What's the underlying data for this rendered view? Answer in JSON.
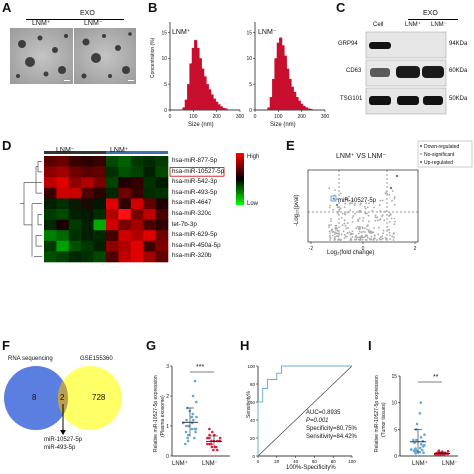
{
  "panels": {
    "A": {
      "letter": "A",
      "header": "EXO",
      "left_label": "LNM⁺",
      "right_label": "LNM⁻"
    },
    "B": {
      "letter": "B",
      "ylabel": "Concentration (%)",
      "xlabel": "Size (nm)",
      "left_title": "LNM⁺",
      "right_title": "LNM⁻",
      "yticks": [
        "0",
        "5",
        "10",
        "15"
      ],
      "xticks": [
        "0",
        "100",
        "200",
        "300"
      ]
    },
    "C": {
      "letter": "C",
      "header": "EXO",
      "col_labels": [
        "Cell",
        "LNM⁺",
        "LNM⁻"
      ],
      "rows": [
        {
          "protein": "GRP94",
          "size": "94KDa"
        },
        {
          "protein": "CD63",
          "size": "60KDa"
        },
        {
          "protein": "TSG101",
          "size": "50KDa"
        }
      ]
    },
    "D": {
      "letter": "D",
      "group_left": "LNM⁻",
      "group_right": "LNM⁺",
      "legend_high": "High",
      "legend_low": "Low",
      "genes": [
        "hsa-miR-877-5p",
        "hsa-miR-10527-5p",
        "hsa-miR-542-3p",
        "hsa-miR-493-5p",
        "hsa-miR-4647",
        "hsa-miR-320c",
        "let-7b-3p",
        "hsa-miR-629-5p",
        "hsa-miR-450a-5p",
        "hsa-miR-320b"
      ],
      "colors": [
        [
          "#5a0000",
          "#6a0000",
          "#3a0000",
          "#2a0000",
          "#380000",
          "#004a00",
          "#006000",
          "#003800",
          "#002a00",
          "#003a00"
        ],
        [
          "#8a0000",
          "#a00000",
          "#700000",
          "#5a0000",
          "#600000",
          "#003000",
          "#005200",
          "#004000",
          "#002000",
          "#004800"
        ],
        [
          "#c00000",
          "#e00000",
          "#900000",
          "#b00000",
          "#7a0000",
          "#004000",
          "#200000",
          "#300000",
          "#003000",
          "#001a00"
        ],
        [
          "#3a0000",
          "#d00000",
          "#c80000",
          "#500000",
          "#2a0000",
          "#002800",
          "#700000",
          "#380000",
          "#002a00",
          "#003200"
        ],
        [
          "#002000",
          "#003000",
          "#0a1a00",
          "#1a0a00",
          "#001800",
          "#e00000",
          "#300000",
          "#d00000",
          "#600000",
          "#200000"
        ],
        [
          "#003a00",
          "#004a00",
          "#002000",
          "#001a00",
          "#002c00",
          "#b00000",
          "#ff1010",
          "#7a0000",
          "#c00000",
          "#4a0000"
        ],
        [
          "#002800",
          "#1a0000",
          "#003a00",
          "#002000",
          "#00aa00",
          "#d00000",
          "#7a0000",
          "#a00000",
          "#4a0000",
          "#300000"
        ],
        [
          "#008000",
          "#006800",
          "#003000",
          "#002000",
          "#002800",
          "#400000",
          "#d00000",
          "#b00000",
          "#e00000",
          "#700000"
        ],
        [
          "#003a00",
          "#00a000",
          "#005000",
          "#003800",
          "#002000",
          "#900000",
          "#b00000",
          "#e00000",
          "#400000",
          "#800000"
        ],
        [
          "#005000",
          "#004000",
          "#002800",
          "#003000",
          "#004800",
          "#500000",
          "#c00000",
          "#e00000",
          "#a00000",
          "#600000"
        ]
      ]
    },
    "E": {
      "letter": "E",
      "title": "LNM⁺ VS LNM⁻",
      "highlight": "miR-10527-5p",
      "ylabel": "-Log₁₀(pval)",
      "xlabel": "Log₂(fold change)",
      "legend": [
        "Down-regulated",
        "No-significant",
        "Up-regulated"
      ],
      "xticks": [
        "-2",
        "0",
        "2"
      ]
    },
    "F": {
      "letter": "F",
      "left_label": "RNA sequencing",
      "right_label": "GSE155360",
      "left_count": "8",
      "overlap_count": "2",
      "right_count": "728",
      "result_lines": [
        "miR-10527-5p",
        "miR-493-5p"
      ]
    },
    "G": {
      "letter": "G",
      "ylabel": "Relative miR-10527-5p expression (Plasma exosome)",
      "ylabel_line1": "Relative miR-10527-5p expression",
      "ylabel_line2": "(Plasma exosome)",
      "groups": [
        "LNM⁺",
        "LNM⁻"
      ],
      "significance": "***",
      "yticks": [
        "0",
        "1",
        "2",
        "3"
      ]
    },
    "H": {
      "letter": "H",
      "ylabel": "Sensitivity%",
      "xlabel": "100%-Specificity%",
      "auc": "AUC=0.8935",
      "p": "P=0.001",
      "specificity": "Specificity=80.75%",
      "sensitivity": "Sensitivity=84.42%",
      "ticks": [
        "0",
        "20",
        "40",
        "60",
        "80",
        "100"
      ]
    },
    "I": {
      "letter": "I",
      "ylabel": "Relative miR-10527-5p expression (Tumor tissues)",
      "ylabel_line1": "Relative miR-10527-5p expression",
      "ylabel_line2": "(Tumor tissues)",
      "groups": [
        "LNM⁺",
        "LNM⁻"
      ],
      "significance": "**",
      "yticks": [
        "0",
        "5",
        "10",
        "15"
      ]
    }
  },
  "colors": {
    "bar_red": "#c8102e",
    "venn_blue": "#5b7fe0",
    "venn_yellow": "#ffff66",
    "venn_overlap": "#b8a050",
    "scatter_blue": "#5fa8d8",
    "scatter_red": "#d8203c",
    "roc": "#6aaed6"
  },
  "chart_data": [
    {
      "type": "bar",
      "panel": "B-left",
      "title": "LNM⁺",
      "xlabel": "Size (nm)",
      "ylabel": "Concentration (%)",
      "x": [
        60,
        70,
        80,
        90,
        100,
        110,
        120,
        130,
        140,
        150,
        160,
        170,
        180,
        190,
        200,
        210,
        220,
        230,
        240,
        250
      ],
      "values": [
        0.5,
        2,
        5,
        9,
        12,
        13.5,
        12,
        10,
        8,
        6.5,
        5,
        4,
        3,
        2.2,
        1.6,
        1.1,
        0.7,
        0.4,
        0.3,
        0.1
      ],
      "ylim": [
        0,
        17
      ],
      "xlim": [
        0,
        300
      ]
    },
    {
      "type": "bar",
      "panel": "B-right",
      "title": "LNM⁻",
      "xlabel": "Size (nm)",
      "x": [
        60,
        70,
        80,
        90,
        100,
        110,
        120,
        130,
        140,
        150,
        160,
        170,
        180,
        190,
        200,
        210,
        220,
        230,
        240,
        250
      ],
      "values": [
        0.5,
        2.5,
        6,
        10,
        13,
        14,
        12.5,
        10.5,
        8,
        6,
        4.5,
        3.5,
        2.5,
        1.8,
        1.2,
        0.8,
        0.5,
        0.3,
        0.2,
        0.1
      ],
      "ylim": [
        0,
        17
      ],
      "xlim": [
        0,
        300
      ]
    },
    {
      "type": "scatter",
      "panel": "G",
      "categories": [
        "LNM⁺",
        "LNM⁻"
      ],
      "series": [
        {
          "values": [
            0.6,
            0.8,
            0.9,
            1.0,
            1.1,
            1.2,
            1.3,
            1.0,
            0.7,
            1.5,
            1.8,
            2.0,
            0.5,
            0.9,
            1.4,
            1.1,
            0.8,
            1.2,
            2.5,
            0.4,
            1.0,
            1.6,
            0.9,
            1.3,
            0.6
          ]
        },
        {
          "values": [
            0.3,
            0.4,
            0.5,
            0.6,
            0.2,
            0.5,
            0.7,
            0.4,
            0.3,
            0.6,
            0.8,
            0.5,
            0.4,
            0.2,
            0.9,
            0.6,
            0.5,
            0.3,
            0.7,
            0.4,
            0.5,
            0.6,
            0.3
          ]
        }
      ],
      "ylim": [
        0,
        3
      ]
    },
    {
      "type": "line",
      "panel": "H",
      "xlabel": "100%-Specificity%",
      "ylabel": "Sensitivity%",
      "x": [
        0,
        0,
        5,
        5,
        10,
        10,
        20,
        20,
        25,
        25,
        100
      ],
      "y": [
        0,
        60,
        60,
        75,
        75,
        85,
        85,
        92,
        92,
        100,
        100
      ],
      "xlim": [
        0,
        100
      ],
      "ylim": [
        0,
        100
      ]
    },
    {
      "type": "scatter",
      "panel": "I",
      "categories": [
        "LNM⁺",
        "LNM⁻"
      ],
      "series": [
        {
          "values": [
            0.5,
            1,
            2,
            3,
            1.5,
            2.5,
            4,
            6,
            1,
            0.8,
            2,
            3.5,
            5,
            8,
            10,
            1.2,
            0.6,
            2.2,
            1.8,
            3,
            0.9,
            1.4,
            2.8,
            0.7,
            1.1
          ]
        },
        {
          "values": [
            0.2,
            0.3,
            0.4,
            0.5,
            0.6,
            0.3,
            0.8,
            1,
            0.2,
            0.4,
            0.5,
            0.7,
            0.3,
            0.2,
            0.6,
            0.9,
            0.4,
            0.3,
            0.5,
            0.2,
            0.4,
            0.6,
            0.3
          ]
        }
      ],
      "ylim": [
        0,
        15
      ]
    }
  ]
}
